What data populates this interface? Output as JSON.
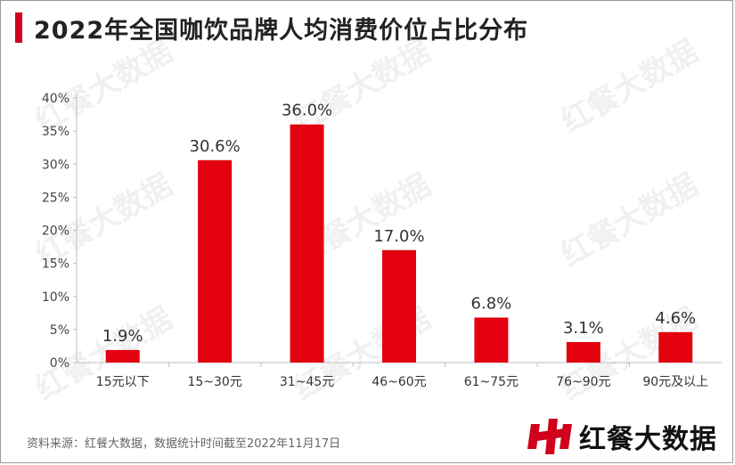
{
  "title": "2022年全国咖饮品牌人均消费价位占比分布",
  "source": "资料来源：红餐大数据，数据统计时间截至2022年11月17日",
  "brand": {
    "name": "红餐大数据",
    "icon": "hc-logo-icon",
    "color": "#d0021b"
  },
  "watermark": "红餐大数据",
  "chart_data": {
    "type": "bar",
    "categories": [
      "15元以下",
      "15~30元",
      "31~45元",
      "46~60元",
      "61~75元",
      "76~90元",
      "90元及以上"
    ],
    "values": [
      1.9,
      30.6,
      36.0,
      17.0,
      6.8,
      3.1,
      4.6
    ],
    "data_labels": [
      "1.9%",
      "30.6%",
      "36.0%",
      "17.0%",
      "6.8%",
      "3.1%",
      "4.6%"
    ],
    "y_ticks": [
      "0%",
      "5%",
      "10%",
      "15%",
      "20%",
      "25%",
      "30%",
      "35%",
      "40%"
    ],
    "ylim": [
      0,
      40
    ],
    "bar_color": "#e3000f",
    "grid": false,
    "legend": "none",
    "xlabel": "",
    "ylabel": ""
  }
}
